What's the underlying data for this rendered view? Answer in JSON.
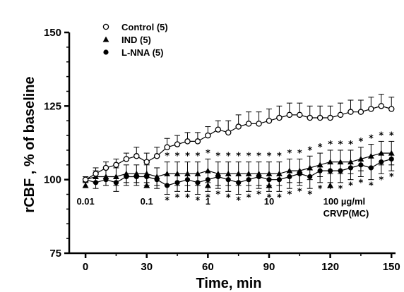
{
  "chart_data": {
    "type": "line",
    "xlabel": "Time, min",
    "ylabel": "rCBF , % of baseline",
    "xlim": [
      -8,
      152
    ],
    "ylim": [
      75,
      150
    ],
    "x_ticks": [
      "0",
      "30",
      "60",
      "90",
      "120",
      "150"
    ],
    "y_ticks": [
      "75",
      "100",
      "125",
      "150"
    ],
    "x": [
      0,
      5,
      10,
      15,
      20,
      25,
      30,
      35,
      40,
      45,
      50,
      55,
      60,
      65,
      70,
      75,
      80,
      85,
      90,
      95,
      100,
      105,
      110,
      115,
      120,
      125,
      130,
      135,
      140,
      145,
      150
    ],
    "series": [
      {
        "name": "Control (5)",
        "marker": "open-circle",
        "values": [
          100,
          102,
          104,
          105,
          107,
          108,
          106,
          108,
          111,
          112,
          113,
          113,
          115,
          117,
          116,
          118,
          119,
          119,
          120,
          121,
          122,
          122,
          121,
          121,
          121,
          122,
          123,
          123,
          124,
          125,
          124
        ],
        "errors": [
          1,
          2,
          2,
          2,
          2,
          3,
          3,
          3,
          3,
          3,
          3,
          3,
          3,
          3,
          4,
          4,
          4,
          4,
          4,
          4,
          4,
          4,
          4,
          4,
          4,
          4,
          4,
          4,
          4,
          4,
          4
        ]
      },
      {
        "name": "IND (5)",
        "marker": "filled-triangle",
        "values": [
          100,
          101,
          101,
          101,
          102,
          102,
          102,
          101,
          102,
          102,
          102,
          102,
          103,
          102,
          102,
          102,
          102,
          102,
          102,
          102,
          103,
          103,
          104,
          105,
          106,
          106,
          106,
          107,
          108,
          109,
          109
        ],
        "errors": [
          1,
          2,
          3,
          3,
          3,
          3,
          3,
          3,
          4,
          4,
          4,
          4,
          4,
          4,
          4,
          4,
          4,
          4,
          4,
          4,
          4,
          4,
          4,
          4,
          4,
          4,
          4,
          4,
          4,
          4,
          4
        ]
      },
      {
        "name": "L-NNA (5)",
        "marker": "filled-circle",
        "values": [
          100,
          99,
          100,
          99,
          101,
          101,
          101,
          100,
          98,
          99,
          100,
          99,
          100,
          101,
          100,
          99,
          100,
          101,
          100,
          100,
          101,
          102,
          101,
          103,
          103,
          103,
          104,
          105,
          104,
          106,
          107
        ],
        "errors": [
          1,
          2,
          2,
          3,
          3,
          3,
          3,
          3,
          3,
          3,
          4,
          4,
          4,
          4,
          4,
          4,
          4,
          4,
          4,
          4,
          4,
          4,
          4,
          4,
          4,
          4,
          4,
          4,
          4,
          4,
          4
        ]
      }
    ],
    "significance_marker": "*",
    "significance_x": [
      40,
      45,
      50,
      55,
      60,
      65,
      70,
      75,
      80,
      85,
      90,
      95,
      100,
      105,
      110,
      115,
      120,
      125,
      130,
      135,
      140,
      145,
      150
    ],
    "doses": [
      {
        "x": 0,
        "label": "0.01"
      },
      {
        "x": 30,
        "label": "0.1"
      },
      {
        "x": 60,
        "label": "1"
      },
      {
        "x": 90,
        "label": "10"
      },
      {
        "x": 120,
        "label": "100 µg/ml"
      }
    ],
    "dose_note": "CRVP(MC)",
    "dose_marker_y": 98,
    "legend_position": "top-left",
    "grid": false
  }
}
